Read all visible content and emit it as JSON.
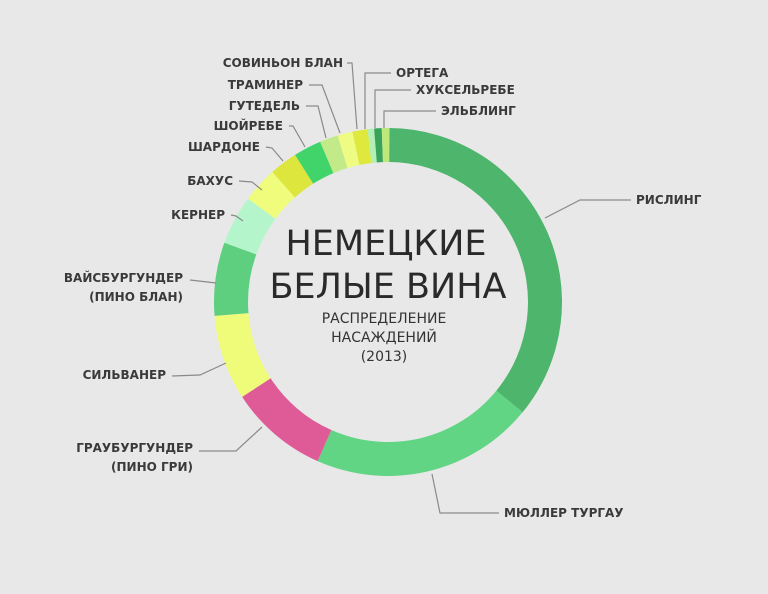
{
  "chart_data": {
    "type": "pie",
    "variant": "donut",
    "title": [
      "НЕМЕЦКИЕ",
      "БЕЛЫЕ ВИНА"
    ],
    "subtitle": [
      "РАСПРЕДЕЛЕНИЕ",
      "НАСАЖДЕНИЙ",
      "(2013)"
    ],
    "unit": "percent",
    "start": "top",
    "direction": "clockwise",
    "slices": [
      {
        "label": [
          "РИСЛИНГ"
        ],
        "value": 35.8,
        "color": "#4db56c"
      },
      {
        "label": [
          "МЮЛЛЕР ТУРГАУ"
        ],
        "value": 20.7,
        "color": "#62d585"
      },
      {
        "label": [
          "ГРАУБУРГУНДЕР",
          "(ПИНО ГРИ)"
        ],
        "value": 9.2,
        "color": "#df5b97"
      },
      {
        "label": [
          "СИЛЬВАНЕР"
        ],
        "value": 7.9,
        "color": "#eefc7a"
      },
      {
        "label": [
          "ВАЙСБУРГУНДЕР",
          "(ПИНО БЛАН)"
        ],
        "value": 6.8,
        "color": "#5dcf7f"
      },
      {
        "label": [
          "КЕРНЕР"
        ],
        "value": 4.6,
        "color": "#b5f5cb"
      },
      {
        "label": [
          "БАХУС"
        ],
        "value": 3.3,
        "color": "#f0fc7c"
      },
      {
        "label": [
          "ШАРДОНЕ"
        ],
        "value": 2.6,
        "color": "#dde63c"
      },
      {
        "label": [
          "ШОЙРЕБЕ"
        ],
        "value": 2.6,
        "color": "#40d46b"
      },
      {
        "label": [
          "ГУТЕДЕЛЬ"
        ],
        "value": 1.7,
        "color": "#c2ea88"
      },
      {
        "label": [
          "ТРАМИНЕР"
        ],
        "value": 1.4,
        "color": "#eefc84"
      },
      {
        "label": [
          "СОВИНЬОН БЛАН"
        ],
        "value": 1.4,
        "color": "#dfe83c"
      },
      {
        "label": [
          "ОРТЕГА"
        ],
        "value": 0.6,
        "color": "#b2f0b6"
      },
      {
        "label": [
          "ХУКСЕЛЬРЕБЕ"
        ],
        "value": 0.7,
        "color": "#3aa35a"
      },
      {
        "label": [
          "ЭЛЬБЛИНГ"
        ],
        "value": 0.7,
        "color": "#bce87c"
      }
    ],
    "background": "#e8e8e8",
    "legend": "none"
  }
}
